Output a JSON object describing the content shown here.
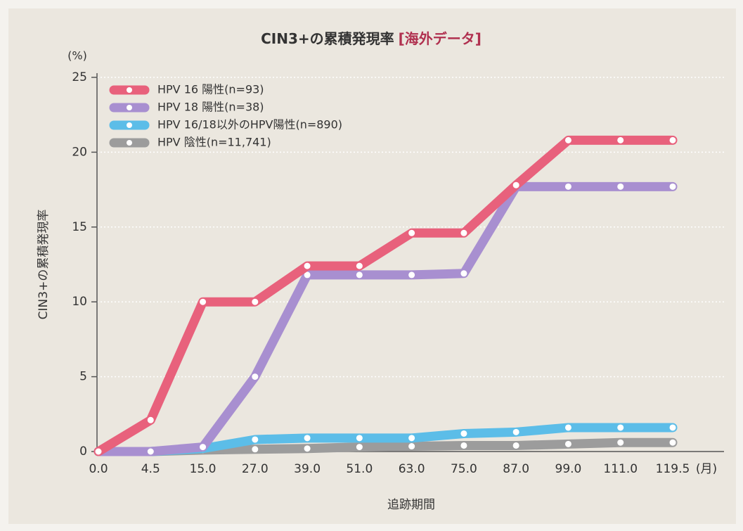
{
  "chart_data": {
    "type": "line",
    "title": "CIN3+の累積発現率",
    "title_note": "[海外データ]",
    "y_unit": "(%)",
    "x_unit": "(月)",
    "ylabel": "CIN3+の累積発現率",
    "xlabel": "追跡期間",
    "categories": [
      "0.0",
      "4.5",
      "15.0",
      "27.0",
      "39.0",
      "51.0",
      "63.0",
      "75.0",
      "87.0",
      "99.0",
      "111.0",
      "119.5"
    ],
    "series": [
      {
        "name": "HPV 16 陽性(n=93)",
        "color": "#e8617c",
        "values": [
          0,
          2.1,
          10.0,
          10.0,
          12.4,
          12.4,
          14.6,
          14.6,
          17.8,
          20.8,
          20.8,
          20.8
        ]
      },
      {
        "name": "HPV 18 陽性(n=38)",
        "color": "#a88fd0",
        "values": [
          0,
          0,
          0.3,
          5.0,
          11.8,
          11.8,
          11.8,
          11.9,
          17.7,
          17.7,
          17.7,
          17.7
        ]
      },
      {
        "name": "HPV 16/18以外のHPV陽性(n=890)",
        "color": "#5cbde8",
        "values": [
          0,
          0,
          0.2,
          0.8,
          0.9,
          0.9,
          0.9,
          1.2,
          1.3,
          1.6,
          1.6,
          1.6
        ]
      },
      {
        "name": "HPV 陰性(n=11,741)",
        "color": "#9c9c9c",
        "values": [
          0,
          0,
          0.1,
          0.15,
          0.2,
          0.3,
          0.35,
          0.4,
          0.4,
          0.5,
          0.6,
          0.6
        ]
      }
    ],
    "ylim": [
      0,
      25
    ],
    "yticks": [
      0,
      5,
      10,
      15,
      20,
      25
    ],
    "grid": true,
    "legend": "top-left"
  }
}
